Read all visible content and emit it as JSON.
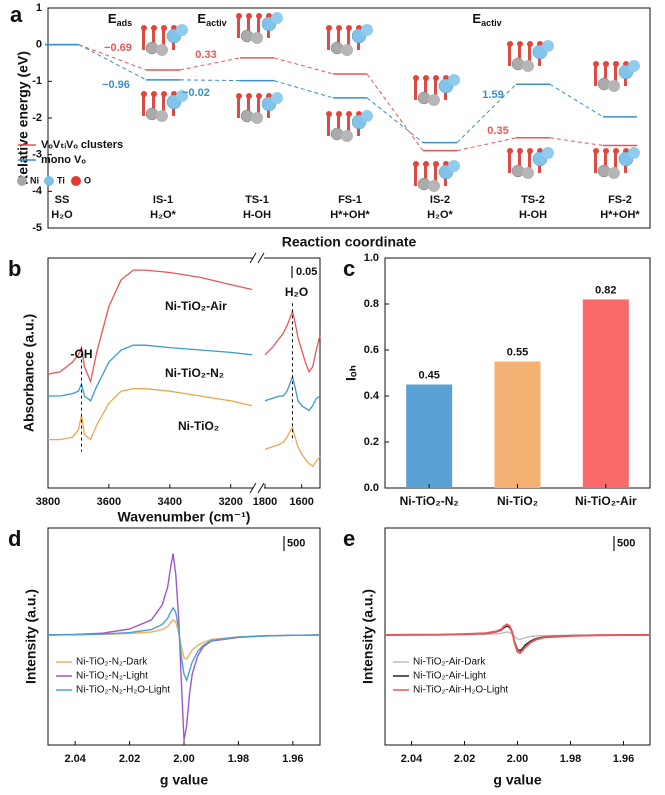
{
  "chart_data": [
    {
      "type": "energy-profile",
      "panel": "a",
      "ylabel": "Relative energy (eV)",
      "xlabel": "Reaction coordinate",
      "ylim": [
        -5,
        1
      ],
      "yticks": [
        -5,
        -4,
        -3,
        -2,
        -1,
        0,
        1
      ],
      "categories": [
        "SS",
        "IS-1",
        "TS-1",
        "FS-1",
        "IS-2",
        "TS-2",
        "FS-2"
      ],
      "species": [
        "H₂O",
        "H₂O*",
        "H-OH",
        "H*+OH*",
        "H₂O*",
        "H-OH",
        "H*+OH*"
      ],
      "series": [
        {
          "name": "VₒVₜᵢVₒ clusters",
          "color": "#e8575a",
          "values": [
            0,
            -0.69,
            -0.36,
            -0.8,
            -2.89,
            -2.54,
            -2.75
          ]
        },
        {
          "name": "mono Vₒ",
          "color": "#3a8fc8",
          "values": [
            0,
            -0.96,
            -0.98,
            -1.45,
            -2.67,
            -1.08,
            -1.97
          ]
        }
      ],
      "annotations": [
        {
          "text": "−0.69",
          "color": "#e8575a"
        },
        {
          "text": "0.33",
          "color": "#e8575a"
        },
        {
          "text": "−0.96",
          "color": "#3a8fc8"
        },
        {
          "text": "−0.02",
          "color": "#3a8fc8"
        },
        {
          "text": "1.59",
          "color": "#3a8fc8"
        },
        {
          "text": "0.35",
          "color": "#e8575a"
        }
      ],
      "headings": [
        {
          "text": "E",
          "sub": "ads"
        },
        {
          "text": "E",
          "sub": "activ"
        },
        {
          "text": "E",
          "sub": "activ"
        }
      ],
      "atoms": [
        {
          "name": "Ni",
          "color": "#a6a6a6"
        },
        {
          "name": "Ti",
          "color": "#7cc0e8"
        },
        {
          "name": "O",
          "color": "#e03c31"
        }
      ]
    },
    {
      "type": "broken-line",
      "panel": "b",
      "ylabel": "Absorbance (a.u.)",
      "xlabel": "Wavenumber (cm⁻¹)",
      "ylim": [
        0,
        0.95
      ],
      "segments": [
        {
          "xlim": [
            3800,
            3130
          ],
          "xticks": [
            3800,
            3600,
            3400,
            3200
          ],
          "x": [
            3800,
            3760,
            3720,
            3700,
            3690,
            3680,
            3660,
            3640,
            3600,
            3560,
            3520,
            3480,
            3400,
            3300,
            3200,
            3130
          ]
        },
        {
          "xlim": [
            1800,
            1500
          ],
          "xticks": [
            1800,
            1600
          ],
          "x": [
            1800,
            1760,
            1720,
            1700,
            1680,
            1660,
            1650,
            1640,
            1620,
            1600,
            1580,
            1560,
            1540,
            1520,
            1500
          ]
        }
      ],
      "series": [
        {
          "name": "Ni-TiO₂-Air",
          "color": "#e8575a",
          "values": [
            [
              0.47,
              0.48,
              0.52,
              0.55,
              0.58,
              0.5,
              0.44,
              0.56,
              0.75,
              0.86,
              0.9,
              0.9,
              0.89,
              0.87,
              0.84,
              0.82
            ],
            [
              0.55,
              0.58,
              0.62,
              0.64,
              0.67,
              0.71,
              0.73,
              0.7,
              0.62,
              0.57,
              0.52,
              0.48,
              0.5,
              0.57,
              0.63
            ]
          ]
        },
        {
          "name": "Ni-TiO₂-N₂",
          "color": "#3a9ad0",
          "values": [
            [
              0.38,
              0.38,
              0.39,
              0.4,
              0.43,
              0.38,
              0.36,
              0.42,
              0.52,
              0.57,
              0.59,
              0.59,
              0.58,
              0.57,
              0.56,
              0.55
            ],
            [
              0.36,
              0.37,
              0.38,
              0.38,
              0.4,
              0.44,
              0.46,
              0.43,
              0.36,
              0.34,
              0.33,
              0.32,
              0.34,
              0.37,
              0.38
            ]
          ]
        },
        {
          "name": "Ni-TiO₂",
          "color": "#eaa84e",
          "values": [
            [
              0.2,
              0.2,
              0.21,
              0.24,
              0.3,
              0.22,
              0.2,
              0.26,
              0.35,
              0.4,
              0.41,
              0.41,
              0.4,
              0.38,
              0.36,
              0.34
            ],
            [
              0.16,
              0.17,
              0.18,
              0.19,
              0.21,
              0.24,
              0.25,
              0.22,
              0.17,
              0.14,
              0.12,
              0.1,
              0.09,
              0.11,
              0.13
            ]
          ]
        }
      ],
      "scale_bar": 0.05,
      "annotations": [
        {
          "text": "-OH"
        },
        {
          "text": "H₂O"
        }
      ]
    },
    {
      "type": "bar",
      "panel": "c",
      "ylabel": "Iₒₕ",
      "ylim": [
        0,
        1
      ],
      "yticks": [
        {
          "value": 0,
          "label": "0.0"
        },
        0.2,
        0.4,
        0.6,
        0.8,
        {
          "value": 1,
          "label": "1.0"
        }
      ],
      "categories": [
        "Ni-TiO₂-N₂",
        "Ni-TiO₂",
        "Ni-TiO₂-Air"
      ],
      "values": [
        0.45,
        0.55,
        0.82
      ],
      "colors": [
        "#5aa2d6",
        "#f5b174",
        "#fb6b6b"
      ]
    },
    {
      "type": "line",
      "panel": "d",
      "ylabel": "Intensity (a.u.)",
      "xlabel": "g value",
      "xlim": [
        2.05,
        1.95
      ],
      "ylim": [
        -3650,
        3550
      ],
      "xticks": [
        2.04,
        2.02,
        {
          "value": 2,
          "label": "2.00"
        },
        1.98,
        1.96
      ],
      "scale_bar": 500,
      "legend": "left",
      "x": [
        2.05,
        2.04,
        2.03,
        2.02,
        2.012,
        2.008,
        2.006,
        2.005,
        2.004,
        2.003,
        2.002,
        2.001,
        2.0,
        1.999,
        1.998,
        1.997,
        1.995,
        1.993,
        1.99,
        1.98,
        1.97,
        1.96,
        1.95
      ],
      "series": [
        {
          "name": "Ni-TiO₂-N₂-Dark",
          "color": "#f0b060",
          "values": [
            0,
            10,
            20,
            50,
            100,
            180,
            280,
            400,
            500,
            420,
            100,
            -400,
            -750,
            -800,
            -650,
            -500,
            -350,
            -250,
            -150,
            -60,
            -20,
            -10,
            0
          ]
        },
        {
          "name": "Ni-TiO₂-N₂-Light",
          "color": "#9b59c6",
          "values": [
            0,
            20,
            60,
            200,
            500,
            1000,
            1600,
            2200,
            2700,
            2000,
            600,
            -1500,
            -3500,
            -3000,
            -2000,
            -1300,
            -700,
            -400,
            -200,
            -80,
            -30,
            -10,
            0
          ]
        },
        {
          "name": "Ni-TiO₂-N₂-H₂O-Light",
          "color": "#4a9fd6",
          "values": [
            0,
            10,
            30,
            80,
            180,
            350,
            550,
            750,
            900,
            750,
            200,
            -700,
            -1300,
            -1500,
            -1200,
            -900,
            -550,
            -350,
            -180,
            -70,
            -30,
            -10,
            0
          ]
        }
      ]
    },
    {
      "type": "line",
      "panel": "e",
      "ylabel": "Intensity (a.u.)",
      "xlabel": "g value",
      "xlim": [
        2.05,
        1.95
      ],
      "ylim": [
        -3650,
        3550
      ],
      "xticks": [
        2.04,
        2.02,
        {
          "value": 2,
          "label": "2.00"
        },
        1.98,
        1.96
      ],
      "scale_bar": 500,
      "legend": "left",
      "x": [
        2.05,
        2.04,
        2.03,
        2.02,
        2.012,
        2.008,
        2.006,
        2.005,
        2.004,
        2.003,
        2.002,
        2.001,
        2.0,
        1.999,
        1.998,
        1.997,
        1.995,
        1.993,
        1.99,
        1.98,
        1.97,
        1.96,
        1.95
      ],
      "series": [
        {
          "name": "Ni-TiO₂-Air-Dark",
          "color": "#bdbdbd",
          "values": [
            0,
            0,
            5,
            10,
            20,
            40,
            60,
            80,
            100,
            80,
            30,
            -60,
            -130,
            -150,
            -120,
            -90,
            -50,
            -30,
            -20,
            -10,
            0,
            0,
            0
          ]
        },
        {
          "name": "Ni-TiO₂-Air-Light",
          "color": "#222222",
          "values": [
            0,
            5,
            10,
            25,
            50,
            100,
            170,
            250,
            300,
            250,
            80,
            -250,
            -480,
            -520,
            -430,
            -330,
            -200,
            -120,
            -60,
            -20,
            -10,
            0,
            0
          ]
        },
        {
          "name": "Ni-TiO₂-Air-H₂O-Light",
          "color": "#e8575a",
          "values": [
            0,
            5,
            10,
            30,
            60,
            120,
            200,
            300,
            350,
            300,
            100,
            -300,
            -550,
            -600,
            -500,
            -400,
            -250,
            -150,
            -80,
            -30,
            -10,
            0,
            0
          ]
        }
      ]
    }
  ]
}
